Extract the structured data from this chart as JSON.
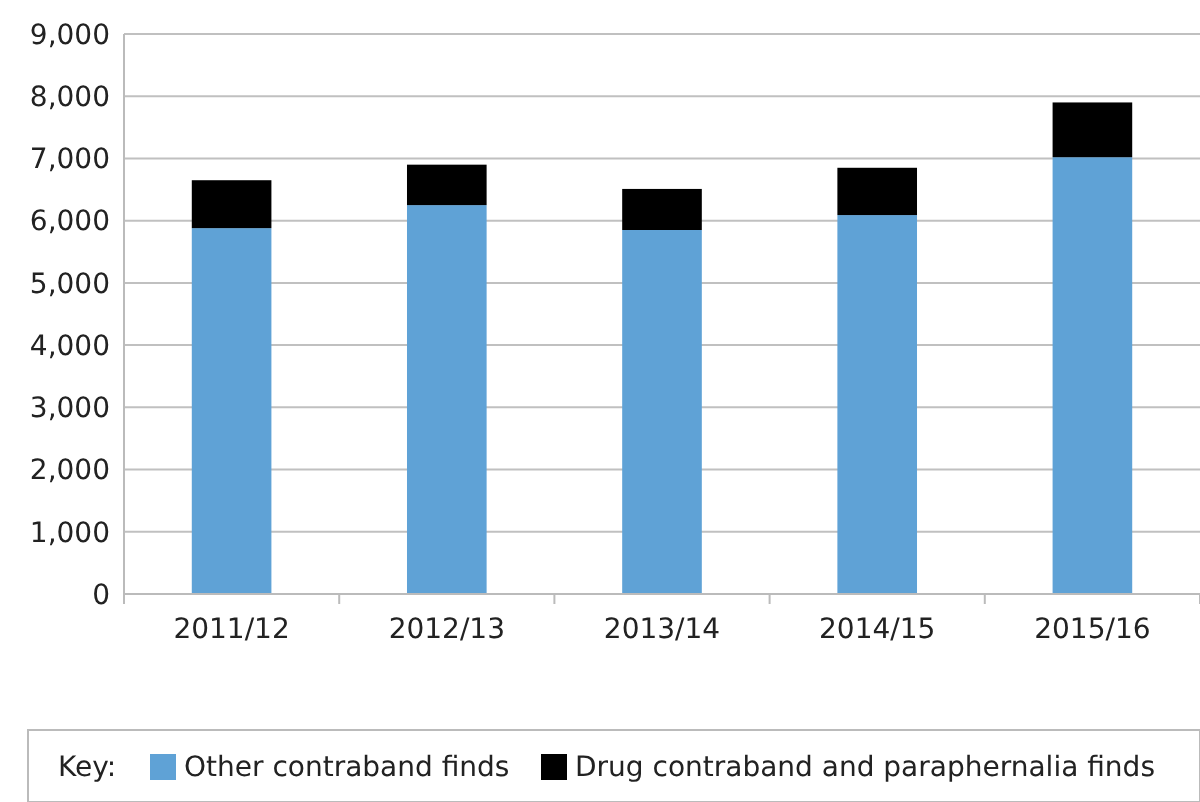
{
  "chart_data": {
    "type": "bar",
    "stacked": true,
    "categories": [
      "2011/12",
      "2012/13",
      "2013/14",
      "2014/15",
      "2015/16"
    ],
    "series": [
      {
        "name": "Other contraband finds",
        "color": "#5fa2d6",
        "values": [
          5880,
          6250,
          5850,
          6090,
          7020
        ]
      },
      {
        "name": "Drug contraband and paraphernalia finds",
        "color": "#000000",
        "values": [
          770,
          650,
          660,
          760,
          880
        ]
      }
    ],
    "ylim": [
      0,
      9000
    ],
    "yticks": [
      {
        "value": 0,
        "label": "0"
      },
      {
        "value": 1000,
        "label": "1,000"
      },
      {
        "value": 2000,
        "label": "2,000"
      },
      {
        "value": 3000,
        "label": "3,000"
      },
      {
        "value": 4000,
        "label": "4,000"
      },
      {
        "value": 5000,
        "label": "5,000"
      },
      {
        "value": 6000,
        "label": "6,000"
      },
      {
        "value": 7000,
        "label": "7,000"
      },
      {
        "value": 8000,
        "label": "8,000"
      },
      {
        "value": 9000,
        "label": "9,000"
      }
    ],
    "grid": "y",
    "legend": "bottom",
    "legend_title": "Key:"
  }
}
